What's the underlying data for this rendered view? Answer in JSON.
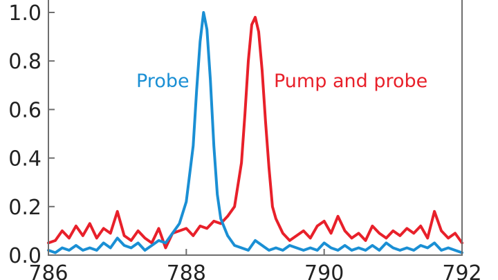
{
  "chart_data": {
    "type": "line",
    "xlim": [
      786,
      792
    ],
    "ylim": [
      0,
      1.0
    ],
    "xticks": [
      "786",
      "788",
      "790",
      "792"
    ],
    "yticks": [
      "0.0",
      "0.2",
      "0.4",
      "0.6",
      "0.8",
      "1.0"
    ],
    "grid": false,
    "series": [
      {
        "name": "Probe",
        "color": "#1a8fd4",
        "x": [
          786.0,
          786.1,
          786.2,
          786.3,
          786.4,
          786.5,
          786.6,
          786.7,
          786.8,
          786.9,
          787.0,
          787.1,
          787.2,
          787.3,
          787.4,
          787.5,
          787.6,
          787.7,
          787.8,
          787.9,
          788.0,
          788.1,
          788.15,
          788.2,
          788.25,
          788.3,
          788.35,
          788.4,
          788.45,
          788.5,
          788.6,
          788.7,
          788.8,
          788.9,
          789.0,
          789.1,
          789.2,
          789.3,
          789.4,
          789.5,
          789.6,
          789.7,
          789.8,
          789.9,
          790.0,
          790.1,
          790.2,
          790.3,
          790.4,
          790.5,
          790.6,
          790.7,
          790.8,
          790.9,
          791.0,
          791.1,
          791.2,
          791.3,
          791.4,
          791.5,
          791.6,
          791.7,
          791.8,
          791.9,
          792.0
        ],
        "values": [
          0.02,
          0.01,
          0.03,
          0.02,
          0.04,
          0.02,
          0.03,
          0.02,
          0.05,
          0.03,
          0.07,
          0.04,
          0.03,
          0.05,
          0.02,
          0.04,
          0.06,
          0.05,
          0.09,
          0.13,
          0.22,
          0.45,
          0.68,
          0.88,
          1.0,
          0.93,
          0.72,
          0.45,
          0.25,
          0.15,
          0.08,
          0.04,
          0.03,
          0.02,
          0.06,
          0.04,
          0.02,
          0.03,
          0.02,
          0.04,
          0.03,
          0.02,
          0.03,
          0.02,
          0.05,
          0.03,
          0.02,
          0.04,
          0.02,
          0.03,
          0.02,
          0.04,
          0.02,
          0.05,
          0.03,
          0.02,
          0.03,
          0.02,
          0.04,
          0.03,
          0.05,
          0.02,
          0.03,
          0.02,
          0.01
        ]
      },
      {
        "name": "Pump and probe",
        "color": "#e8202a",
        "x": [
          786.0,
          786.1,
          786.2,
          786.3,
          786.4,
          786.5,
          786.6,
          786.7,
          786.8,
          786.9,
          787.0,
          787.1,
          787.2,
          787.3,
          787.4,
          787.5,
          787.6,
          787.7,
          787.8,
          787.9,
          788.0,
          788.1,
          788.2,
          788.3,
          788.4,
          788.5,
          788.6,
          788.7,
          788.8,
          788.85,
          788.9,
          788.95,
          789.0,
          789.05,
          789.1,
          789.15,
          789.2,
          789.25,
          789.3,
          789.4,
          789.5,
          789.6,
          789.7,
          789.8,
          789.9,
          790.0,
          790.1,
          790.2,
          790.3,
          790.4,
          790.5,
          790.6,
          790.7,
          790.8,
          790.9,
          791.0,
          791.1,
          791.2,
          791.3,
          791.4,
          791.5,
          791.6,
          791.7,
          791.8,
          791.9,
          792.0
        ],
        "values": [
          0.05,
          0.06,
          0.1,
          0.07,
          0.12,
          0.08,
          0.13,
          0.07,
          0.11,
          0.09,
          0.18,
          0.08,
          0.06,
          0.1,
          0.07,
          0.05,
          0.11,
          0.03,
          0.09,
          0.1,
          0.11,
          0.08,
          0.12,
          0.11,
          0.14,
          0.13,
          0.16,
          0.2,
          0.38,
          0.58,
          0.8,
          0.95,
          0.98,
          0.92,
          0.76,
          0.55,
          0.36,
          0.2,
          0.15,
          0.09,
          0.06,
          0.08,
          0.1,
          0.07,
          0.12,
          0.14,
          0.09,
          0.16,
          0.1,
          0.07,
          0.09,
          0.06,
          0.12,
          0.09,
          0.07,
          0.1,
          0.08,
          0.11,
          0.09,
          0.12,
          0.07,
          0.18,
          0.1,
          0.07,
          0.09,
          0.05
        ]
      }
    ]
  }
}
